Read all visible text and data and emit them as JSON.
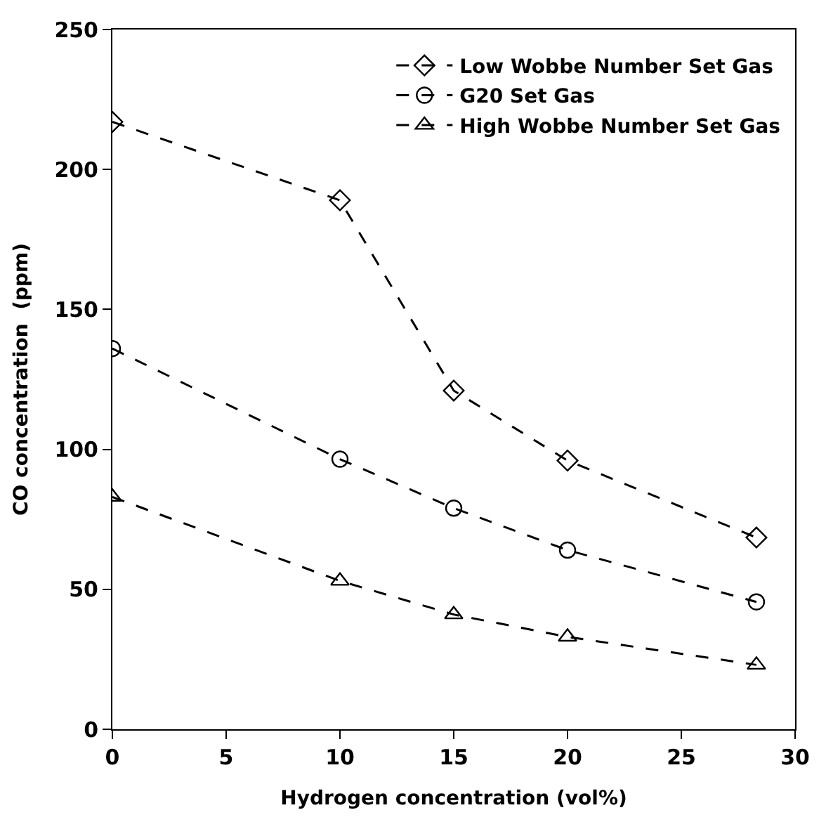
{
  "chart_data": {
    "type": "line",
    "xlabel": "Hydrogen concentration (vol%)",
    "ylabel": "CO concentration  (ppm)",
    "x": [
      0,
      10,
      15,
      20,
      28.3
    ],
    "series": [
      {
        "name": "Low Wobbe Number Set Gas",
        "color": "#000000",
        "marker": "diamond",
        "values": [
          217,
          189,
          121,
          96,
          68.5
        ]
      },
      {
        "name": "G20 Set Gas",
        "color": "#000000",
        "marker": "circle",
        "values": [
          136,
          96.5,
          79,
          64,
          45.5
        ]
      },
      {
        "name": "High Wobbe Number Set Gas",
        "color": "#000000",
        "marker": "triangle",
        "values": [
          83,
          53,
          41,
          33,
          23
        ]
      }
    ],
    "xlim": [
      0,
      30
    ],
    "xticks": [
      0,
      5,
      10,
      15,
      20,
      25,
      30
    ],
    "ylim": [
      0,
      250
    ],
    "yticks": [
      0,
      50,
      100,
      150,
      200,
      250
    ],
    "line_style": "dashed",
    "legend": "top right"
  }
}
